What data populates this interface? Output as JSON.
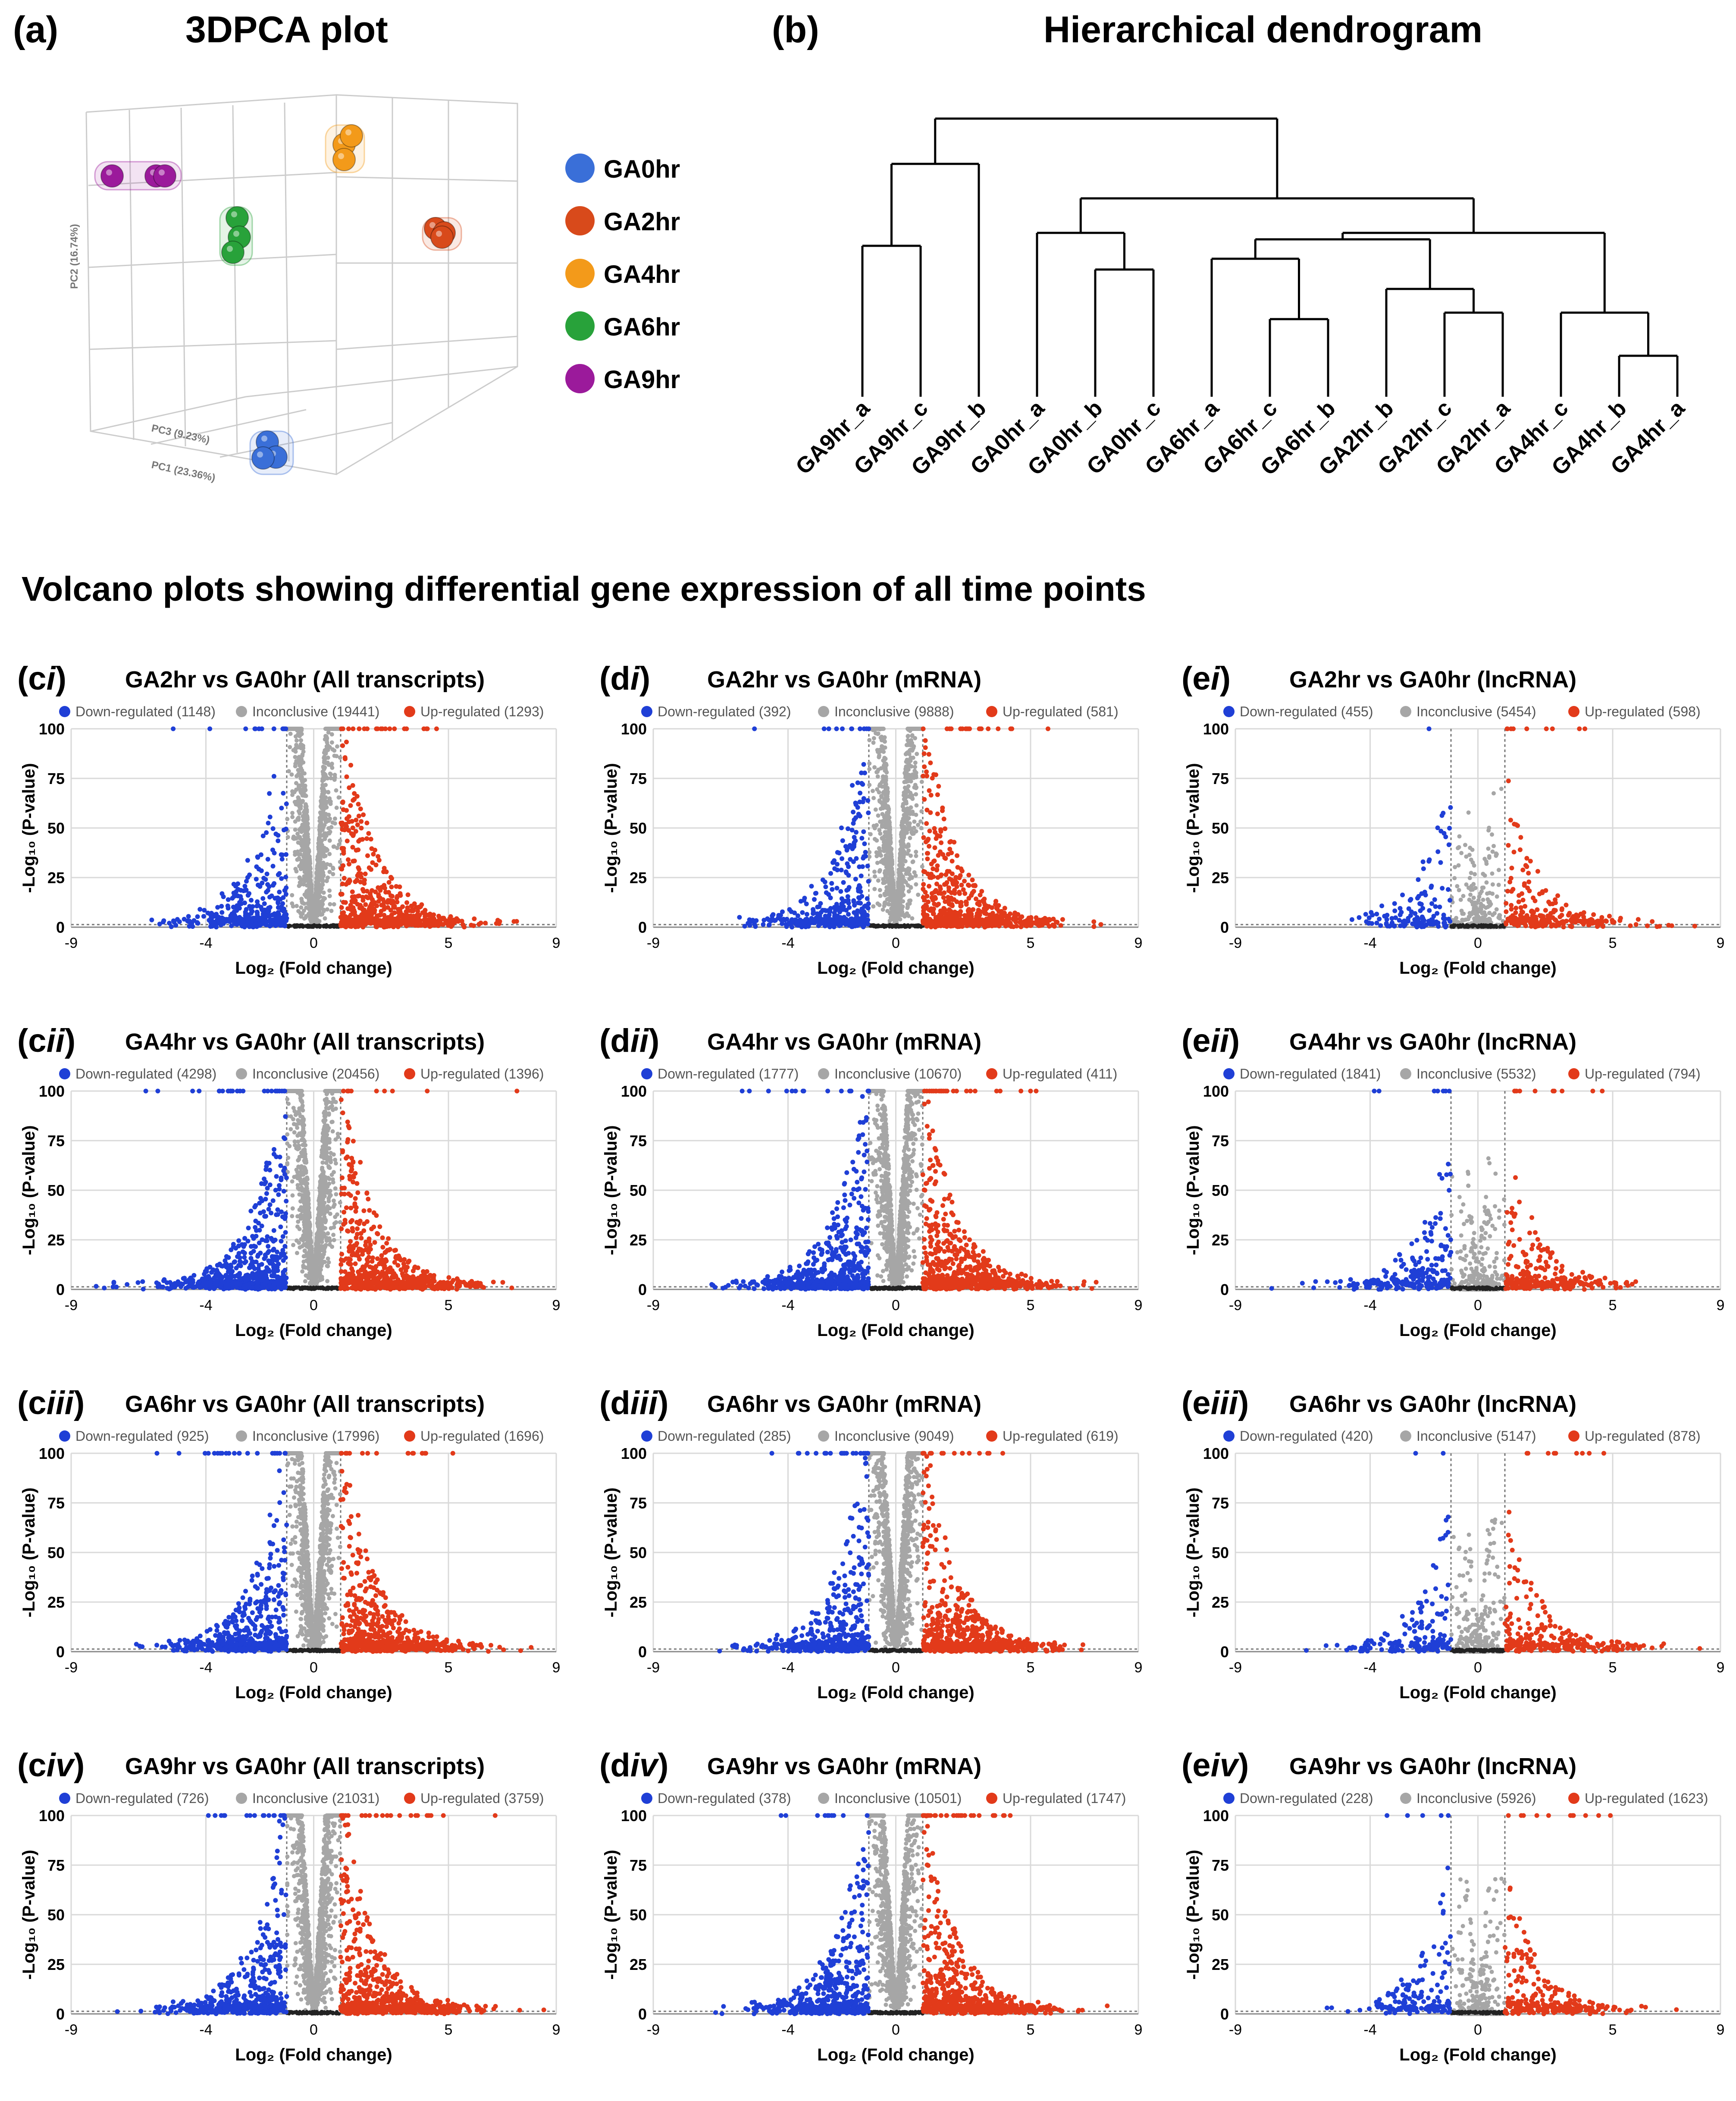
{
  "panel_a": {
    "label": "(a)",
    "title": "3DPCA plot"
  },
  "panel_b": {
    "label": "(b)",
    "title": "Hierarchical dendrogram"
  },
  "section_title": "Volcano plots showing differential gene expression of all time points",
  "colors": {
    "GA0hr": "#3a6fd8",
    "GA2hr": "#d84a1b",
    "GA4hr": "#f39a1a",
    "GA6hr": "#28a23a",
    "GA9hr": "#9b1a9b",
    "down": "#1f3fd6",
    "inconclusive": "#a6a6a6",
    "up": "#e23a1a",
    "grid": "#d9d9d9"
  },
  "chart_data": [
    {
      "type": "scatter",
      "title": "3DPCA plot",
      "axes": {
        "pc1": "PC1 (23.36%)",
        "pc2": "PC2 (16.74%)",
        "pc3": "PC3 (9.23%)"
      },
      "legend": [
        "GA0hr",
        "GA2hr",
        "GA4hr",
        "GA6hr",
        "GA9hr"
      ],
      "groups": [
        {
          "name": "GA9hr",
          "position": "top-left"
        },
        {
          "name": "GA4hr",
          "position": "top-center"
        },
        {
          "name": "GA6hr",
          "position": "upper-left-middle"
        },
        {
          "name": "GA2hr",
          "position": "right-middle"
        },
        {
          "name": "GA0hr",
          "position": "bottom"
        }
      ]
    },
    {
      "type": "dendrogram",
      "title": "Hierarchical dendrogram",
      "leaves": [
        "GA9hr_a",
        "GA9hr_c",
        "GA9hr_b",
        "GA0hr_a",
        "GA0hr_b",
        "GA0hr_c",
        "GA6hr_a",
        "GA6hr_c",
        "GA6hr_b",
        "GA2hr_b",
        "GA2hr_c",
        "GA2hr_a",
        "GA4hr_c",
        "GA4hr_b",
        "GA4hr_a"
      ]
    },
    {
      "type": "scatter",
      "id": "ci",
      "label": "c",
      "roman": "i",
      "title": "GA2hr vs GA0hr (All transcripts)",
      "legend": [
        "Down-regulated (1148)",
        "Inconclusive (19441)",
        "Up-regulated (1293)"
      ],
      "xlabel": "Log₂ (Fold change)",
      "ylabel": "-Log₁₀ (P-value)",
      "xticks": [
        "-9",
        "-4",
        "0",
        "5",
        "9"
      ],
      "yticks": [
        "0",
        "25",
        "50",
        "75",
        "100"
      ],
      "xlim": [
        -9,
        9
      ],
      "ylim": [
        0,
        100
      ],
      "density": "dense",
      "spread": 0.6,
      "seed": 1
    },
    {
      "type": "scatter",
      "id": "di",
      "label": "d",
      "roman": "i",
      "title": "GA2hr vs GA0hr (mRNA)",
      "legend": [
        "Down-regulated (392)",
        "Inconclusive (9888)",
        "Up-regulated (581)"
      ],
      "xlabel": "Log₂ (Fold change)",
      "ylabel": "-Log₁₀ (P-value)",
      "xticks": [
        "-9",
        "-4",
        "0",
        "5",
        "9"
      ],
      "yticks": [
        "0",
        "25",
        "50",
        "75",
        "100"
      ],
      "xlim": [
        -9,
        9
      ],
      "ylim": [
        0,
        100
      ],
      "density": "dense",
      "spread": 0.6,
      "seed": 2
    },
    {
      "type": "scatter",
      "id": "ei",
      "label": "e",
      "roman": "i",
      "title": "GA2hr vs GA0hr (lncRNA)",
      "legend": [
        "Down-regulated (455)",
        "Inconclusive (5454)",
        "Up-regulated (598)"
      ],
      "xlabel": "Log₂ (Fold change)",
      "ylabel": "-Log₁₀ (P-value)",
      "xticks": [
        "-9",
        "-4",
        "0",
        "5",
        "9"
      ],
      "yticks": [
        "0",
        "25",
        "50",
        "75",
        "100"
      ],
      "xlim": [
        -9,
        9
      ],
      "ylim": [
        0,
        100
      ],
      "density": "sparse",
      "spread": 0.5,
      "seed": 3
    },
    {
      "type": "scatter",
      "id": "cii",
      "label": "c",
      "roman": "ii",
      "title": "GA4hr vs GA0hr (All transcripts)",
      "legend": [
        "Down-regulated (4298)",
        "Inconclusive (20456)",
        "Up-regulated (1396)"
      ],
      "xlabel": "Log₂ (Fold change)",
      "ylabel": "-Log₁₀ (P-value)",
      "xticks": [
        "-9",
        "-4",
        "0",
        "5",
        "9"
      ],
      "yticks": [
        "0",
        "25",
        "50",
        "75",
        "100"
      ],
      "xlim": [
        -9,
        9
      ],
      "ylim": [
        0,
        100
      ],
      "density": "dense",
      "spread": 1.0,
      "seed": 4
    },
    {
      "type": "scatter",
      "id": "dii",
      "label": "d",
      "roman": "ii",
      "title": "GA4hr vs GA0hr (mRNA)",
      "legend": [
        "Down-regulated (1777)",
        "Inconclusive (10670)",
        "Up-regulated (411)"
      ],
      "xlabel": "Log₂ (Fold change)",
      "ylabel": "-Log₁₀ (P-value)",
      "xticks": [
        "-9",
        "-4",
        "0",
        "5",
        "9"
      ],
      "yticks": [
        "0",
        "25",
        "50",
        "75",
        "100"
      ],
      "xlim": [
        -9,
        9
      ],
      "ylim": [
        0,
        100
      ],
      "density": "dense",
      "spread": 0.9,
      "seed": 5
    },
    {
      "type": "scatter",
      "id": "eii",
      "label": "e",
      "roman": "ii",
      "title": "GA4hr vs GA0hr (lncRNA)",
      "legend": [
        "Down-regulated (1841)",
        "Inconclusive (5532)",
        "Up-regulated (794)"
      ],
      "xlabel": "Log₂ (Fold change)",
      "ylabel": "-Log₁₀ (P-value)",
      "xticks": [
        "-9",
        "-4",
        "0",
        "5",
        "9"
      ],
      "yticks": [
        "0",
        "25",
        "50",
        "75",
        "100"
      ],
      "xlim": [
        -9,
        9
      ],
      "ylim": [
        0,
        100
      ],
      "density": "sparse",
      "spread": 0.9,
      "seed": 6
    },
    {
      "type": "scatter",
      "id": "ciii",
      "label": "c",
      "roman": "iii",
      "title": "GA6hr vs GA0hr (All transcripts)",
      "legend": [
        "Down-regulated (925)",
        "Inconclusive (17996)",
        "Up-regulated (1696)"
      ],
      "xlabel": "Log₂ (Fold change)",
      "ylabel": "-Log₁₀ (P-value)",
      "xticks": [
        "-9",
        "-4",
        "0",
        "5",
        "9"
      ],
      "yticks": [
        "0",
        "25",
        "50",
        "75",
        "100"
      ],
      "xlim": [
        -9,
        9
      ],
      "ylim": [
        0,
        100
      ],
      "density": "dense",
      "spread": 0.8,
      "seed": 7
    },
    {
      "type": "scatter",
      "id": "diii",
      "label": "d",
      "roman": "iii",
      "title": "GA6hr vs GA0hr (mRNA)",
      "legend": [
        "Down-regulated (285)",
        "Inconclusive (9049)",
        "Up-regulated (619)"
      ],
      "xlabel": "Log₂ (Fold change)",
      "ylabel": "-Log₁₀ (P-value)",
      "xticks": [
        "-9",
        "-4",
        "0",
        "5",
        "9"
      ],
      "yticks": [
        "0",
        "25",
        "50",
        "75",
        "100"
      ],
      "xlim": [
        -9,
        9
      ],
      "ylim": [
        0,
        100
      ],
      "density": "dense",
      "spread": 0.7,
      "seed": 8
    },
    {
      "type": "scatter",
      "id": "eiii",
      "label": "e",
      "roman": "iii",
      "title": "GA6hr vs GA0hr (lncRNA)",
      "legend": [
        "Down-regulated (420)",
        "Inconclusive (5147)",
        "Up-regulated (878)"
      ],
      "xlabel": "Log₂ (Fold change)",
      "ylabel": "-Log₁₀ (P-value)",
      "xticks": [
        "-9",
        "-4",
        "0",
        "5",
        "9"
      ],
      "yticks": [
        "0",
        "25",
        "50",
        "75",
        "100"
      ],
      "xlim": [
        -9,
        9
      ],
      "ylim": [
        0,
        100
      ],
      "density": "sparse",
      "spread": 0.6,
      "seed": 9
    },
    {
      "type": "scatter",
      "id": "civ",
      "label": "c",
      "roman": "iv",
      "title": "GA9hr vs GA0hr (All transcripts)",
      "legend": [
        "Down-regulated (726)",
        "Inconclusive (21031)",
        "Up-regulated (3759)"
      ],
      "xlabel": "Log₂ (Fold change)",
      "ylabel": "-Log₁₀ (P-value)",
      "xticks": [
        "-9",
        "-4",
        "0",
        "5",
        "9"
      ],
      "yticks": [
        "0",
        "25",
        "50",
        "75",
        "100"
      ],
      "xlim": [
        -9,
        9
      ],
      "ylim": [
        0,
        100
      ],
      "density": "dense",
      "spread": 0.8,
      "seed": 10
    },
    {
      "type": "scatter",
      "id": "div",
      "label": "d",
      "roman": "iv",
      "title": "GA9hr vs GA0hr (mRNA)",
      "legend": [
        "Down-regulated (378)",
        "Inconclusive (10501)",
        "Up-regulated (1747)"
      ],
      "xlabel": "Log₂ (Fold change)",
      "ylabel": "-Log₁₀ (P-value)",
      "xticks": [
        "-9",
        "-4",
        "0",
        "5",
        "9"
      ],
      "yticks": [
        "0",
        "25",
        "50",
        "75",
        "100"
      ],
      "xlim": [
        -9,
        9
      ],
      "ylim": [
        0,
        100
      ],
      "density": "dense",
      "spread": 0.8,
      "seed": 11
    },
    {
      "type": "scatter",
      "id": "eiv",
      "label": "e",
      "roman": "iv",
      "title": "GA9hr vs GA0hr (lncRNA)",
      "legend": [
        "Down-regulated (228)",
        "Inconclusive (5926)",
        "Up-regulated (1623)"
      ],
      "xlabel": "Log₂ (Fold change)",
      "ylabel": "-Log₁₀ (P-value)",
      "xticks": [
        "-9",
        "-4",
        "0",
        "5",
        "9"
      ],
      "yticks": [
        "0",
        "25",
        "50",
        "75",
        "100"
      ],
      "xlim": [
        -9,
        9
      ],
      "ylim": [
        0,
        100
      ],
      "density": "sparse",
      "spread": 0.6,
      "seed": 12
    }
  ]
}
